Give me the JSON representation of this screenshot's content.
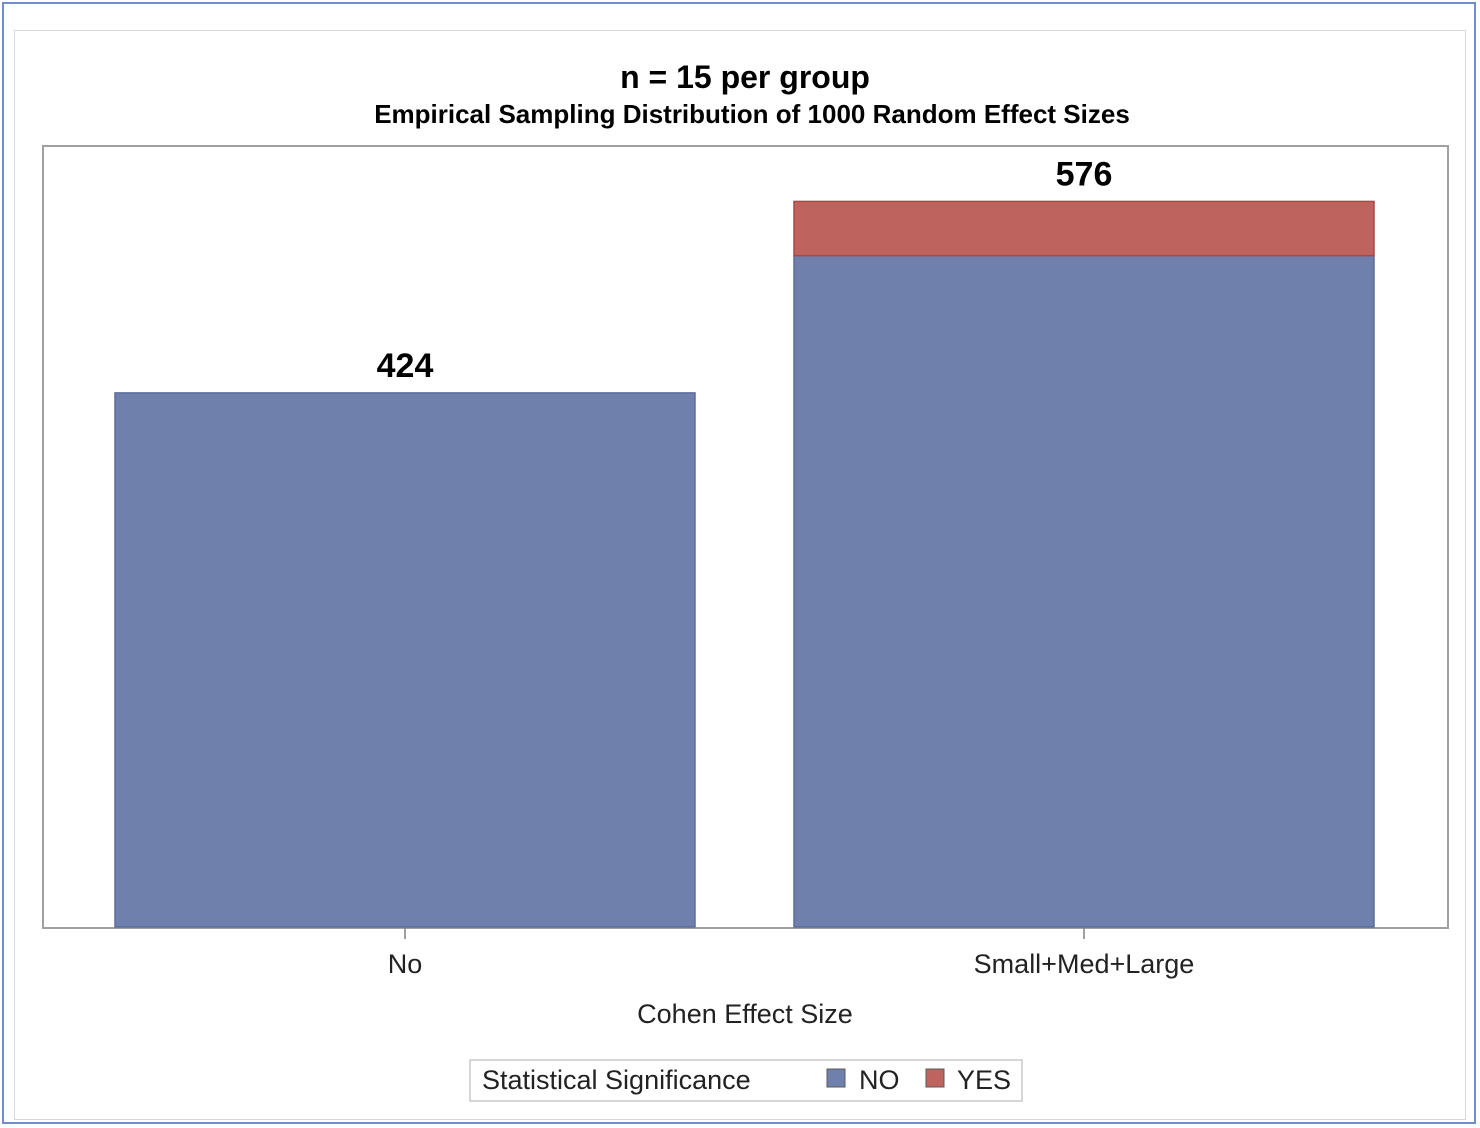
{
  "colors": {
    "no": "#7080ac",
    "yes": "#bf635f",
    "frame_border": "#6f8fc8",
    "plot_border": "#a0a0a0"
  },
  "chart_data": {
    "type": "bar",
    "stacked": true,
    "title": "n = 15 per group",
    "subtitle": "Empirical Sampling Distribution of 1000 Random Effect Sizes",
    "xlabel": "Cohen Effect Size",
    "ylabel": "",
    "categories": [
      "No",
      "Small+Med+Large"
    ],
    "series": [
      {
        "name": "NO",
        "color_key": "no",
        "values": [
          424,
          533
        ]
      },
      {
        "name": "YES",
        "color_key": "yes",
        "values": [
          0,
          43
        ]
      }
    ],
    "totals": [
      424,
      576
    ],
    "total_labels": [
      "424",
      "576"
    ],
    "ylim": [
      0,
      620
    ],
    "grid": false,
    "legend": {
      "title": "Statistical Significance",
      "position": "bottom-center",
      "entries": [
        "NO",
        "YES"
      ]
    }
  }
}
